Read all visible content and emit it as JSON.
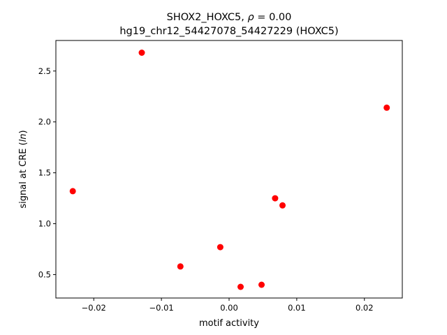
{
  "chart_data": {
    "type": "scatter",
    "title_line1": "SHOX2_HOXC5, ",
    "title_rho": "ρ",
    "title_rho_value": " = 0.00",
    "title_line2": "hg19_chr12_54427078_54427229 (HOXC5)",
    "xlabel": "motif activity",
    "ylabel_prefix": "signal at CRE (",
    "ylabel_italic": "ln",
    "ylabel_suffix": ")",
    "xlim": [
      -0.0256,
      0.0256
    ],
    "ylim": [
      0.27,
      2.8
    ],
    "x_ticks": [
      -0.02,
      -0.01,
      0.0,
      0.01,
      0.02
    ],
    "x_tick_labels": [
      "−0.02",
      "−0.01",
      "0.00",
      "0.01",
      "0.02"
    ],
    "y_ticks": [
      0.5,
      1.0,
      1.5,
      2.0,
      2.5
    ],
    "y_tick_labels": [
      "0.5",
      "1.0",
      "1.5",
      "2.0",
      "2.5"
    ],
    "grid": false,
    "marker_color": "#ff0000",
    "points": [
      {
        "x": -0.0231,
        "y": 1.32
      },
      {
        "x": -0.0129,
        "y": 2.68
      },
      {
        "x": -0.0072,
        "y": 0.58
      },
      {
        "x": -0.0013,
        "y": 0.77
      },
      {
        "x": 0.0017,
        "y": 0.38
      },
      {
        "x": 0.0048,
        "y": 0.4
      },
      {
        "x": 0.0068,
        "y": 1.25
      },
      {
        "x": 0.0079,
        "y": 1.18
      },
      {
        "x": 0.0233,
        "y": 2.14
      }
    ]
  }
}
